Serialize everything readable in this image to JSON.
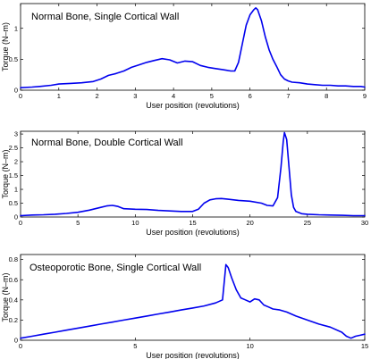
{
  "chart_data": [
    {
      "type": "line",
      "title": "Normal Bone, Single Cortical Wall",
      "xlabel": "User position (revolutions)",
      "ylabel": "Torque (N–m)",
      "xlim": [
        0,
        9
      ],
      "ylim": [
        0,
        1.4
      ],
      "xticks": [
        0,
        1,
        2,
        3,
        4,
        5,
        6,
        7,
        8,
        9
      ],
      "yticks": [
        0,
        0.5,
        1
      ],
      "ytick_labels": [
        "0",
        "0.5",
        "1"
      ],
      "grid": false,
      "legend": "none",
      "series": [
        {
          "color": "#0000ee",
          "x": [
            0,
            0.3,
            0.5,
            0.8,
            1.0,
            1.3,
            1.6,
            1.9,
            2.1,
            2.3,
            2.5,
            2.7,
            2.9,
            3.1,
            3.3,
            3.5,
            3.7,
            3.9,
            4.1,
            4.3,
            4.5,
            4.7,
            4.9,
            5.1,
            5.3,
            5.5,
            5.6,
            5.7,
            5.8,
            5.9,
            6.0,
            6.1,
            6.15,
            6.2,
            6.3,
            6.4,
            6.5,
            6.6,
            6.7,
            6.8,
            6.9,
            7.0,
            7.1,
            7.3,
            7.5,
            7.7,
            7.9,
            8.1,
            8.3,
            8.5,
            8.7,
            8.9,
            9.0
          ],
          "y": [
            0.04,
            0.05,
            0.06,
            0.08,
            0.1,
            0.11,
            0.12,
            0.14,
            0.18,
            0.24,
            0.27,
            0.31,
            0.37,
            0.41,
            0.45,
            0.48,
            0.51,
            0.49,
            0.44,
            0.47,
            0.46,
            0.4,
            0.37,
            0.35,
            0.33,
            0.31,
            0.31,
            0.45,
            0.75,
            1.05,
            1.22,
            1.3,
            1.33,
            1.3,
            1.12,
            0.86,
            0.65,
            0.5,
            0.38,
            0.25,
            0.18,
            0.15,
            0.13,
            0.12,
            0.1,
            0.09,
            0.08,
            0.08,
            0.07,
            0.07,
            0.06,
            0.06,
            0.05
          ]
        }
      ]
    },
    {
      "type": "line",
      "title": "Normal Bone, Double Cortical Wall",
      "xlabel": "User position (revolutions)",
      "ylabel": "Torque (N–m)",
      "xlim": [
        0,
        30
      ],
      "ylim": [
        0,
        3.1
      ],
      "xticks": [
        0,
        5,
        10,
        15,
        20,
        25,
        30
      ],
      "yticks": [
        0,
        0.5,
        1,
        1.5,
        2,
        2.5,
        3
      ],
      "ytick_labels": [
        "0",
        "0.5",
        "1",
        "1.5",
        "2",
        "2.5",
        "3"
      ],
      "grid": false,
      "legend": "none",
      "series": [
        {
          "color": "#0000ee",
          "x": [
            0,
            1,
            2,
            3,
            4,
            5,
            6,
            7,
            7.5,
            8,
            8.5,
            9,
            10,
            11,
            12,
            13,
            14,
            15,
            15.5,
            16,
            16.5,
            17,
            17.5,
            18,
            19,
            20,
            21,
            21.5,
            22,
            22.4,
            22.7,
            22.9,
            23.0,
            23.2,
            23.4,
            23.6,
            23.8,
            24,
            24.5,
            25,
            26,
            27,
            28,
            29,
            30
          ],
          "y": [
            0.05,
            0.07,
            0.08,
            0.1,
            0.13,
            0.17,
            0.25,
            0.35,
            0.4,
            0.42,
            0.38,
            0.3,
            0.28,
            0.27,
            0.24,
            0.22,
            0.2,
            0.2,
            0.28,
            0.5,
            0.62,
            0.66,
            0.67,
            0.65,
            0.6,
            0.57,
            0.5,
            0.42,
            0.4,
            0.7,
            1.8,
            2.75,
            3.05,
            2.8,
            1.8,
            0.8,
            0.35,
            0.2,
            0.12,
            0.1,
            0.08,
            0.07,
            0.06,
            0.05,
            0.05
          ]
        }
      ]
    },
    {
      "type": "line",
      "title": "Osteoporotic Bone, Single Cortical Wall",
      "xlabel": "User position (revolutions)",
      "ylabel": "Torque (N–m)",
      "xlim": [
        0,
        15
      ],
      "ylim": [
        0,
        0.85
      ],
      "xticks": [
        0,
        5,
        10,
        15
      ],
      "yticks": [
        0,
        0.2,
        0.4,
        0.6,
        0.8
      ],
      "ytick_labels": [
        "0",
        "0.2",
        "0.4",
        "0.6",
        "0.8"
      ],
      "grid": false,
      "legend": "none",
      "series": [
        {
          "color": "#0000ee",
          "x": [
            0,
            0.5,
            1,
            1.5,
            2,
            2.5,
            3,
            3.5,
            4,
            4.5,
            5,
            5.5,
            6,
            6.5,
            7,
            7.5,
            8,
            8.5,
            8.8,
            8.95,
            9.05,
            9.2,
            9.4,
            9.6,
            9.8,
            10.0,
            10.2,
            10.4,
            10.6,
            10.8,
            11.0,
            11.3,
            11.6,
            12.0,
            12.5,
            13.0,
            13.5,
            14.0,
            14.2,
            14.4,
            14.6,
            14.8,
            15.0
          ],
          "y": [
            0.02,
            0.04,
            0.06,
            0.08,
            0.1,
            0.12,
            0.14,
            0.16,
            0.18,
            0.2,
            0.22,
            0.24,
            0.26,
            0.28,
            0.3,
            0.32,
            0.34,
            0.37,
            0.4,
            0.75,
            0.72,
            0.62,
            0.5,
            0.42,
            0.4,
            0.38,
            0.41,
            0.4,
            0.35,
            0.33,
            0.31,
            0.3,
            0.28,
            0.24,
            0.2,
            0.16,
            0.13,
            0.08,
            0.04,
            0.02,
            0.04,
            0.05,
            0.06
          ]
        }
      ]
    }
  ]
}
